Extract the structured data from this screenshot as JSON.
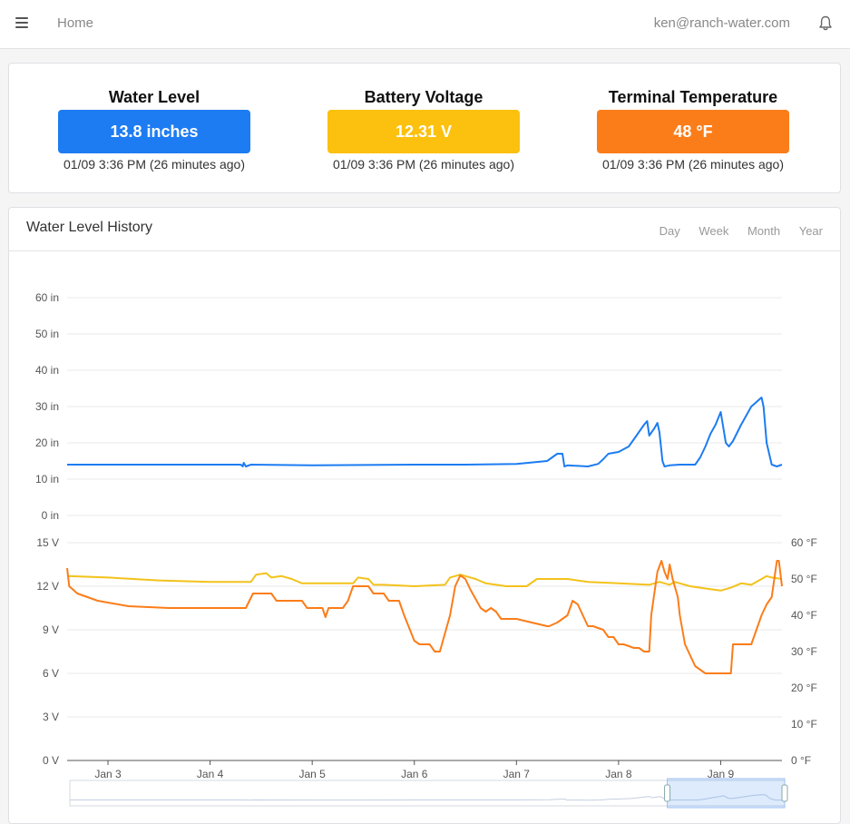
{
  "nav": {
    "home": "Home",
    "user_email": "ken@ranch-water.com",
    "menu_icon": "hamburger-menu-icon",
    "bell_icon": "bell-icon"
  },
  "stats": [
    {
      "title": "Water Level",
      "value": "13.8 inches",
      "time": "01/09 3:36 PM (26 minutes ago)",
      "color": "#1d7cf2"
    },
    {
      "title": "Battery Voltage",
      "value": "12.31 V",
      "time": "01/09 3:36 PM (26 minutes ago)",
      "color": "#fcc10f"
    },
    {
      "title": "Terminal Temperature",
      "value": "48 °F",
      "time": "01/09 3:36 PM (26 minutes ago)",
      "color": "#fb7d1a"
    }
  ],
  "history": {
    "title": "Water Level History",
    "ranges": [
      "Day",
      "Week",
      "Month",
      "Year"
    ]
  },
  "chart_data": [
    {
      "type": "line",
      "title": "",
      "ylim": [
        0,
        60
      ],
      "yticks": [
        "0 in",
        "10 in",
        "20 in",
        "30 in",
        "40 in",
        "50 in",
        "60 in"
      ],
      "xlim": [
        2.6,
        9.6
      ],
      "series": [
        {
          "color": "#1d7cf2",
          "x": [
            2.6,
            3.3,
            4.3,
            4.32,
            4.33,
            4.35,
            4.4,
            5.0,
            5.5,
            6.0,
            6.5,
            7.0,
            7.3,
            7.4,
            7.45,
            7.47,
            7.5,
            7.7,
            7.8,
            7.85,
            7.9,
            8.0,
            8.1,
            8.15,
            8.2,
            8.25,
            8.28,
            8.3,
            8.35,
            8.38,
            8.4,
            8.43,
            8.45,
            8.5,
            8.6,
            8.75,
            8.8,
            8.85,
            8.9,
            8.95,
            9.0,
            9.05,
            9.08,
            9.12,
            9.2,
            9.3,
            9.4,
            9.42,
            9.45,
            9.5,
            9.55,
            9.6
          ],
          "y": [
            14,
            14,
            14,
            13.5,
            14.5,
            13.5,
            14,
            13.8,
            13.9,
            14,
            14,
            14.2,
            15,
            17,
            17,
            13.5,
            13.8,
            13.5,
            14.2,
            15.5,
            17,
            17.5,
            19,
            21,
            23,
            25,
            26,
            22,
            24,
            25.5,
            23,
            15,
            13.5,
            13.8,
            14,
            14,
            16,
            19,
            22.5,
            25,
            28.5,
            20,
            19,
            20.5,
            25,
            30,
            32.5,
            30,
            20,
            14,
            13.5,
            14
          ]
        }
      ]
    },
    {
      "type": "line",
      "title": "",
      "ylim": [
        0,
        15
      ],
      "yticks": [
        "0 V",
        "3 V",
        "6 V",
        "9 V",
        "12 V",
        "15 V"
      ],
      "y2lim": [
        0,
        60
      ],
      "y2ticks": [
        "0 °F",
        "10 °F",
        "20 °F",
        "30 °F",
        "40 °F",
        "50 °F",
        "60 °F"
      ],
      "xlim": [
        2.6,
        9.6
      ],
      "xticks": [
        "Jan 3",
        "Jan 4",
        "Jan 5",
        "Jan 6",
        "Jan 7",
        "Jan 8",
        "Jan 9"
      ],
      "xtick_values": [
        3,
        4,
        5,
        6,
        7,
        8,
        9
      ],
      "series": [
        {
          "axis": "left",
          "color": "#f3c21b",
          "x": [
            2.6,
            3.0,
            3.5,
            4.0,
            4.4,
            4.45,
            4.55,
            4.6,
            4.7,
            4.8,
            4.9,
            5.0,
            5.4,
            5.45,
            5.55,
            5.6,
            5.7,
            6.0,
            6.3,
            6.35,
            6.45,
            6.6,
            6.7,
            6.9,
            7.1,
            7.2,
            7.5,
            7.7,
            8.0,
            8.3,
            8.4,
            8.5,
            8.55,
            8.6,
            8.7,
            8.9,
            9.0,
            9.1,
            9.2,
            9.3,
            9.4,
            9.45,
            9.5,
            9.6
          ],
          "y": [
            12.7,
            12.6,
            12.4,
            12.3,
            12.3,
            12.8,
            12.9,
            12.6,
            12.7,
            12.5,
            12.2,
            12.2,
            12.2,
            12.6,
            12.5,
            12.1,
            12.1,
            12.0,
            12.1,
            12.6,
            12.8,
            12.5,
            12.2,
            12.0,
            12.0,
            12.5,
            12.5,
            12.3,
            12.2,
            12.1,
            12.3,
            12.1,
            12.3,
            12.2,
            12.0,
            11.8,
            11.7,
            11.9,
            12.2,
            12.1,
            12.5,
            12.7,
            12.6,
            12.5
          ]
        },
        {
          "axis": "right",
          "color": "#fb7d1a",
          "x": [
            2.6,
            2.62,
            2.7,
            2.9,
            3.2,
            3.6,
            4.0,
            4.35,
            4.42,
            4.6,
            4.65,
            4.9,
            4.95,
            5.1,
            5.13,
            5.16,
            5.3,
            5.35,
            5.4,
            5.55,
            5.6,
            5.7,
            5.75,
            5.85,
            5.9,
            6.0,
            6.05,
            6.15,
            6.2,
            6.25,
            6.35,
            6.4,
            6.45,
            6.5,
            6.55,
            6.65,
            6.7,
            6.75,
            6.8,
            6.85,
            6.95,
            7.0,
            7.3,
            7.32,
            7.4,
            7.5,
            7.55,
            7.6,
            7.65,
            7.7,
            7.75,
            7.85,
            7.9,
            7.95,
            8.0,
            8.05,
            8.15,
            8.2,
            8.25,
            8.3,
            8.32,
            8.38,
            8.42,
            8.45,
            8.48,
            8.5,
            8.53,
            8.55,
            8.58,
            8.6,
            8.65,
            8.75,
            8.8,
            8.85,
            9.1,
            9.12,
            9.2,
            9.3,
            9.4,
            9.45,
            9.5,
            9.55,
            9.57,
            9.6
          ],
          "y": [
            53,
            48,
            46,
            44,
            42.5,
            42,
            42,
            42,
            46,
            46,
            44,
            44,
            42,
            42,
            39.5,
            42,
            42,
            44,
            48,
            48,
            46,
            46,
            44,
            44,
            40,
            33,
            32,
            32,
            30,
            30,
            40,
            48,
            51,
            50,
            47,
            42,
            41,
            42,
            41,
            39,
            39,
            39,
            37,
            37,
            38,
            40,
            44,
            43,
            40,
            37,
            37,
            36,
            34,
            34,
            32,
            32,
            31,
            31,
            30,
            30,
            40,
            52,
            55,
            52,
            50,
            54,
            50,
            48,
            45,
            40,
            32,
            26,
            25,
            24,
            24,
            32,
            32,
            32,
            40,
            43,
            45,
            55,
            55,
            48
          ]
        }
      ]
    }
  ]
}
